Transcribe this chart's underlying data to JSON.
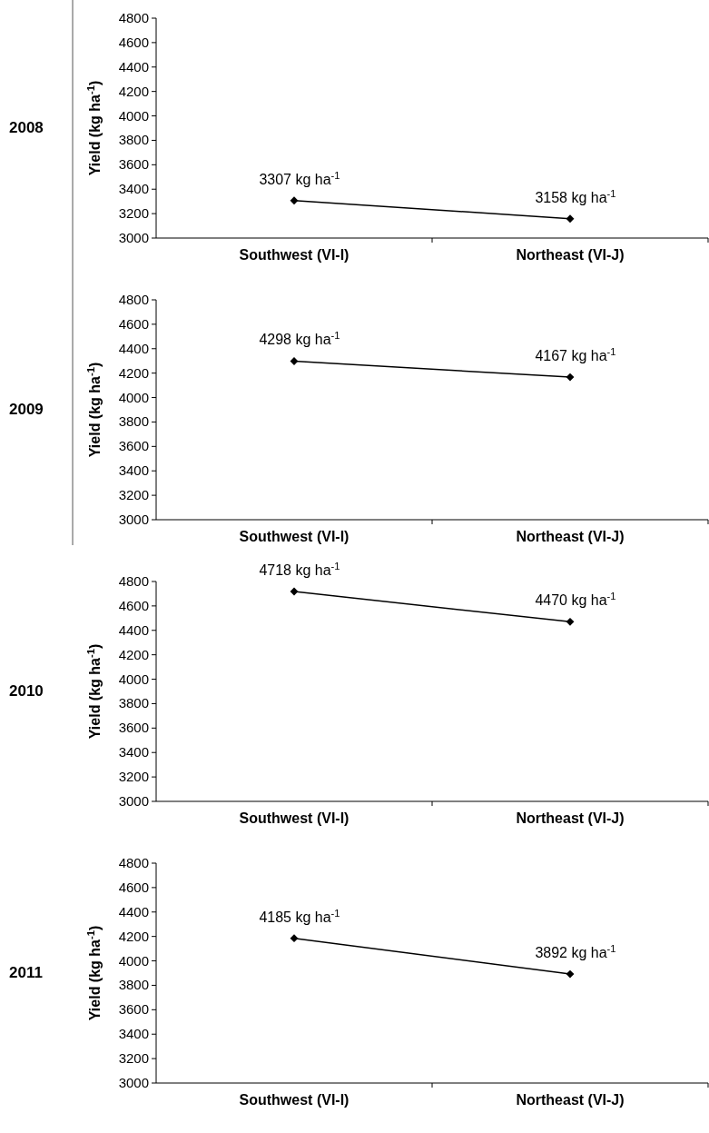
{
  "chart_data": [
    {
      "type": "line",
      "title": "2008",
      "ylabel": "Yield (kg ha$^{-1}$)",
      "categories": [
        "Southwest (VI-I)",
        "Northeast (VI-J)"
      ],
      "series": [
        {
          "color": "#000000",
          "values": [
            3307,
            3158
          ],
          "value_labels": [
            "3307 kg ha$^{-1}$",
            "3158 kg ha$^{-1}$"
          ]
        }
      ],
      "ylim": [
        3000,
        4800
      ],
      "yticks": [
        3000,
        3200,
        3400,
        3600,
        3800,
        4000,
        4200,
        4400,
        4600,
        4800
      ],
      "marker": "diamond",
      "line_style": "solid",
      "grid": false
    },
    {
      "type": "line",
      "title": "2009",
      "ylabel": "Yield (kg ha$^{-1}$)",
      "categories": [
        "Southwest (VI-I)",
        "Northeast (VI-J)"
      ],
      "series": [
        {
          "color": "#000000",
          "values": [
            4298,
            4167
          ],
          "value_labels": [
            "4298 kg ha$^{-1}$",
            "4167 kg ha$^{-1}$"
          ]
        }
      ],
      "ylim": [
        3000,
        4800
      ],
      "yticks": [
        3000,
        3200,
        3400,
        3600,
        3800,
        4000,
        4200,
        4400,
        4600,
        4800
      ],
      "marker": "diamond",
      "line_style": "solid",
      "grid": false
    },
    {
      "type": "line",
      "title": "2010",
      "ylabel": "Yield (kg ha$^{-1}$)",
      "categories": [
        "Southwest (VI-I)",
        "Northeast (VI-J)"
      ],
      "series": [
        {
          "color": "#000000",
          "values": [
            4718,
            4470
          ],
          "value_labels": [
            "4718 kg ha$^{-1}$",
            "4470 kg ha$^{-1}$"
          ]
        }
      ],
      "ylim": [
        3000,
        4800
      ],
      "yticks": [
        3000,
        3200,
        3400,
        3600,
        3800,
        4000,
        4200,
        4400,
        4600,
        4800
      ],
      "marker": "diamond",
      "line_style": "solid",
      "grid": false
    },
    {
      "type": "line",
      "title": "2011",
      "ylabel": "Yield (kg ha$^{-1}$)",
      "categories": [
        "Southwest (VI-I)",
        "Northeast (VI-J)"
      ],
      "series": [
        {
          "color": "#000000",
          "values": [
            4185,
            3892
          ],
          "value_labels": [
            "4185 kg ha$^{-1}$",
            "3892 kg ha$^{-1}$"
          ]
        }
      ],
      "ylim": [
        3000,
        4800
      ],
      "yticks": [
        3000,
        3200,
        3400,
        3600,
        3800,
        4000,
        4200,
        4400,
        4600,
        4800
      ],
      "marker": "diamond",
      "line_style": "solid",
      "grid": false
    }
  ]
}
